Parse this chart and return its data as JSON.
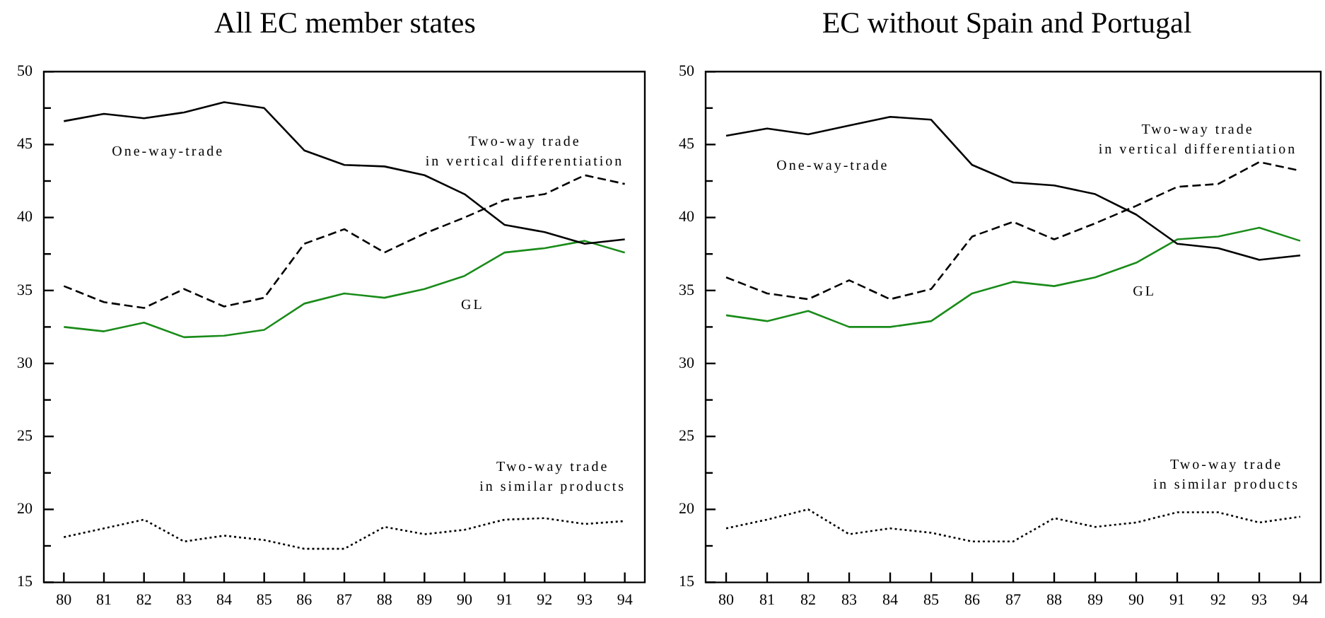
{
  "chart_data": [
    {
      "type": "line",
      "title": "All EC member states",
      "categories": [
        "80",
        "81",
        "82",
        "83",
        "84",
        "85",
        "86",
        "87",
        "88",
        "89",
        "90",
        "91",
        "92",
        "93",
        "94"
      ],
      "ylim": [
        15,
        50
      ],
      "yticks": [
        15,
        {
          "value": 17.5,
          "label": null
        },
        20,
        {
          "value": 22.5,
          "label": null
        },
        25,
        {
          "value": 27.5,
          "label": null
        },
        30,
        {
          "value": 32.5,
          "label": null
        },
        35,
        {
          "value": 37.5,
          "label": null
        },
        40,
        {
          "value": 42.5,
          "label": null
        },
        45,
        {
          "value": 47.5,
          "label": null
        },
        50
      ],
      "legend": false,
      "marker": "none",
      "series": [
        {
          "name": "One-way-trade",
          "color": "#000000",
          "line_style": "solid",
          "values": [
            46.6,
            47.1,
            46.8,
            47.2,
            47.9,
            47.5,
            44.6,
            43.6,
            43.5,
            42.9,
            41.6,
            39.5,
            39.0,
            38.2,
            38.5
          ]
        },
        {
          "name": "Two-way trade in vertical differentiation",
          "color": "#000000",
          "line_style": "dashed",
          "values": [
            35.3,
            34.2,
            33.8,
            35.1,
            33.9,
            34.5,
            38.2,
            39.2,
            37.6,
            38.9,
            40.0,
            41.2,
            41.6,
            42.9,
            42.3
          ]
        },
        {
          "name": "GL",
          "color": "#1a8c1a",
          "line_style": "solid",
          "values": [
            32.5,
            32.2,
            32.8,
            31.8,
            31.9,
            32.3,
            34.1,
            34.8,
            34.5,
            35.1,
            36.0,
            37.6,
            37.9,
            38.4,
            37.6
          ]
        },
        {
          "name": "Two-way trade in similar products",
          "color": "#000000",
          "line_style": "dotted",
          "values": [
            18.1,
            18.7,
            19.3,
            17.8,
            18.2,
            17.9,
            17.3,
            17.3,
            18.8,
            18.3,
            18.6,
            19.3,
            19.4,
            19.0,
            19.2
          ]
        }
      ]
    },
    {
      "type": "line",
      "title": "EC without Spain and Portugal",
      "categories": [
        "80",
        "81",
        "82",
        "83",
        "84",
        "85",
        "86",
        "87",
        "88",
        "89",
        "90",
        "91",
        "92",
        "93",
        "94"
      ],
      "ylim": [
        15,
        50
      ],
      "yticks": [
        15,
        {
          "value": 17.5,
          "label": null
        },
        20,
        {
          "value": 22.5,
          "label": null
        },
        25,
        {
          "value": 27.5,
          "label": null
        },
        30,
        {
          "value": 32.5,
          "label": null
        },
        35,
        {
          "value": 37.5,
          "label": null
        },
        40,
        {
          "value": 42.5,
          "label": null
        },
        45,
        {
          "value": 47.5,
          "label": null
        },
        50
      ],
      "legend": false,
      "marker": "none",
      "series": [
        {
          "name": "One-way-trade",
          "color": "#000000",
          "line_style": "solid",
          "values": [
            45.6,
            46.1,
            45.7,
            46.3,
            46.9,
            46.7,
            43.6,
            42.4,
            42.2,
            41.6,
            40.2,
            38.2,
            37.9,
            37.1,
            37.4
          ]
        },
        {
          "name": "Two-way trade in vertical differentiation",
          "color": "#000000",
          "line_style": "dashed",
          "values": [
            35.9,
            34.8,
            34.4,
            35.7,
            34.4,
            35.1,
            38.7,
            39.7,
            38.5,
            39.6,
            40.8,
            42.1,
            42.3,
            43.8,
            43.2
          ]
        },
        {
          "name": "GL",
          "color": "#1a8c1a",
          "line_style": "solid",
          "values": [
            33.3,
            32.9,
            33.6,
            32.5,
            32.5,
            32.9,
            34.8,
            35.6,
            35.3,
            35.9,
            36.9,
            38.5,
            38.7,
            39.3,
            38.4
          ]
        },
        {
          "name": "Two-way trade in similar products",
          "color": "#000000",
          "line_style": "dotted",
          "values": [
            18.7,
            19.3,
            20.0,
            18.3,
            18.7,
            18.4,
            17.8,
            17.8,
            19.4,
            18.8,
            19.1,
            19.8,
            19.8,
            19.1,
            19.5
          ]
        }
      ]
    }
  ]
}
